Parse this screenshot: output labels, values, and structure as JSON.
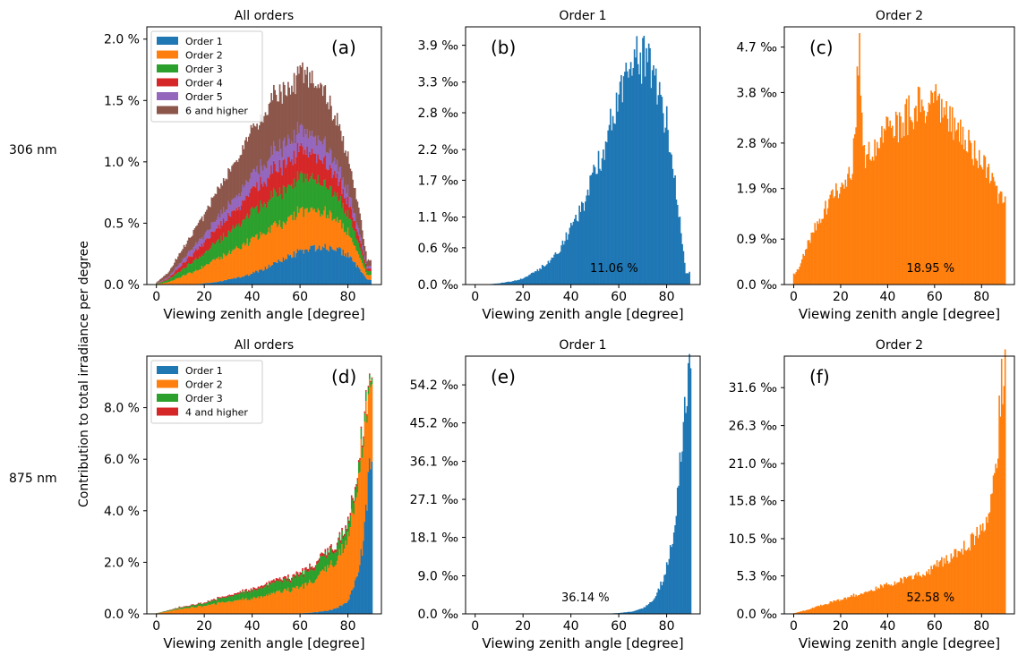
{
  "figure": {
    "ylabel": "Contribution to total irradiance per degree",
    "row_labels": [
      "306 nm",
      "875 nm"
    ]
  },
  "chart_data": [
    {
      "id": "a",
      "type": "bar",
      "stacked": true,
      "title": "All orders",
      "panel_label": "(a)",
      "xlabel": "Viewing zenith angle [degree]",
      "xlim": [
        -4,
        94
      ],
      "xticks": [
        "0",
        "20",
        "40",
        "60",
        "80"
      ],
      "ylim": [
        0,
        2.1
      ],
      "yticks": [
        0,
        0.5,
        1.0,
        1.5,
        2.0
      ],
      "ytick_labels": [
        "0.0 %",
        "0.5 %",
        "1.0 %",
        "1.5 %",
        "2.0 %"
      ],
      "legend_position": "top-left",
      "x": [
        5,
        10,
        15,
        20,
        25,
        30,
        35,
        40,
        45,
        50,
        55,
        60,
        65,
        70,
        75,
        80,
        85,
        88
      ],
      "series": [
        {
          "name": "Order 1",
          "color": "#1f77b4",
          "values": [
            0.0,
            0.0,
            0.0,
            0.01,
            0.02,
            0.04,
            0.06,
            0.09,
            0.13,
            0.18,
            0.23,
            0.27,
            0.3,
            0.31,
            0.3,
            0.24,
            0.12,
            0.04
          ]
        },
        {
          "name": "Order 2",
          "color": "#ff7f0e",
          "values": [
            0.02,
            0.06,
            0.1,
            0.14,
            0.18,
            0.22,
            0.25,
            0.27,
            0.29,
            0.3,
            0.31,
            0.32,
            0.31,
            0.28,
            0.24,
            0.18,
            0.1,
            0.04
          ]
        },
        {
          "name": "Order 3",
          "color": "#2ca02c",
          "values": [
            0.02,
            0.05,
            0.08,
            0.11,
            0.14,
            0.17,
            0.2,
            0.22,
            0.24,
            0.26,
            0.27,
            0.27,
            0.26,
            0.24,
            0.2,
            0.15,
            0.08,
            0.03
          ]
        },
        {
          "name": "Order 4",
          "color": "#d62728",
          "values": [
            0.01,
            0.04,
            0.06,
            0.09,
            0.11,
            0.13,
            0.15,
            0.17,
            0.19,
            0.2,
            0.21,
            0.21,
            0.2,
            0.18,
            0.15,
            0.11,
            0.06,
            0.02
          ]
        },
        {
          "name": "Order 5",
          "color": "#9467bd",
          "values": [
            0.01,
            0.03,
            0.05,
            0.06,
            0.08,
            0.1,
            0.11,
            0.13,
            0.14,
            0.15,
            0.16,
            0.16,
            0.15,
            0.14,
            0.12,
            0.09,
            0.05,
            0.02
          ]
        },
        {
          "name": "6 and higher",
          "color": "#8c564b",
          "values": [
            0.04,
            0.08,
            0.12,
            0.17,
            0.22,
            0.27,
            0.31,
            0.36,
            0.4,
            0.43,
            0.45,
            0.46,
            0.45,
            0.42,
            0.36,
            0.28,
            0.16,
            0.05
          ]
        }
      ]
    },
    {
      "id": "b",
      "type": "bar",
      "title": "Order 1",
      "panel_label": "(b)",
      "xlabel": "Viewing zenith angle [degree]",
      "xlim": [
        -4,
        94
      ],
      "xticks": [
        "0",
        "20",
        "40",
        "60",
        "80"
      ],
      "ylim": [
        0,
        4.2
      ],
      "yticks": [
        0,
        0.6,
        1.1,
        1.7,
        2.2,
        2.8,
        3.3,
        3.9
      ],
      "ytick_labels": [
        "0.0 ‰",
        "0.6 ‰",
        "1.1 ‰",
        "1.7 ‰",
        "2.2 ‰",
        "2.8 ‰",
        "3.3 ‰",
        "3.9 ‰"
      ],
      "annotation": "11.06 %",
      "x": [
        10,
        15,
        20,
        25,
        30,
        35,
        40,
        45,
        50,
        55,
        60,
        65,
        70,
        75,
        80,
        85,
        88
      ],
      "series": [
        {
          "name": "Order 1",
          "color": "#1f77b4",
          "values": [
            0.02,
            0.05,
            0.1,
            0.2,
            0.35,
            0.55,
            0.9,
            1.3,
            1.8,
            2.4,
            3.0,
            3.6,
            3.7,
            3.4,
            2.6,
            1.2,
            0.2
          ]
        }
      ]
    },
    {
      "id": "c",
      "type": "bar",
      "title": "Order 2",
      "panel_label": "(c)",
      "xlabel": "Viewing zenith angle [degree]",
      "xlim": [
        -4,
        94
      ],
      "xticks": [
        "0",
        "20",
        "40",
        "60",
        "80"
      ],
      "ylim": [
        0,
        5.1
      ],
      "yticks": [
        0,
        0.9,
        1.9,
        2.8,
        3.8,
        4.7
      ],
      "ytick_labels": [
        "0.0 ‰",
        "0.9 ‰",
        "1.9 ‰",
        "2.8 ‰",
        "3.8 ‰",
        "4.7 ‰"
      ],
      "annotation": "18.95 %",
      "x": [
        2,
        5,
        10,
        15,
        20,
        25,
        28,
        30,
        35,
        40,
        45,
        50,
        55,
        60,
        65,
        70,
        75,
        80,
        85,
        89
      ],
      "series": [
        {
          "name": "Order 2",
          "color": "#ff7f0e",
          "values": [
            0.3,
            0.7,
            1.2,
            1.6,
            2.0,
            2.3,
            4.7,
            2.5,
            2.8,
            3.0,
            3.2,
            3.4,
            3.6,
            3.6,
            3.4,
            3.1,
            2.8,
            2.4,
            2.0,
            1.6
          ]
        }
      ]
    },
    {
      "id": "d",
      "type": "bar",
      "stacked": true,
      "title": "All orders",
      "panel_label": "(d)",
      "xlabel": "Viewing zenith angle [degree]",
      "xlim": [
        -4,
        94
      ],
      "xticks": [
        "0",
        "20",
        "40",
        "60",
        "80"
      ],
      "ylim": [
        0,
        10.0
      ],
      "yticks": [
        0,
        2,
        4,
        6,
        8
      ],
      "ytick_labels": [
        "0.0 %",
        "2.0 %",
        "4.0 %",
        "6.0 %",
        "8.0 %"
      ],
      "legend_position": "top-left",
      "x": [
        5,
        10,
        20,
        30,
        40,
        50,
        60,
        65,
        70,
        75,
        80,
        84,
        86,
        88,
        89
      ],
      "series": [
        {
          "name": "Order 1",
          "color": "#1f77b4",
          "values": [
            0.0,
            0.0,
            0.0,
            0.0,
            0.0,
            0.0,
            0.02,
            0.05,
            0.1,
            0.2,
            0.5,
            1.5,
            2.5,
            4.5,
            5.5
          ]
        },
        {
          "name": "Order 2",
          "color": "#ff7f0e",
          "values": [
            0.1,
            0.2,
            0.3,
            0.5,
            0.6,
            0.8,
            1.0,
            1.2,
            1.5,
            1.9,
            2.5,
            3.5,
            4.0,
            3.8,
            3.0
          ]
        },
        {
          "name": "Order 3",
          "color": "#2ca02c",
          "values": [
            0.03,
            0.05,
            0.1,
            0.2,
            0.3,
            0.4,
            0.45,
            0.5,
            0.55,
            0.55,
            0.5,
            0.45,
            0.4,
            0.3,
            0.2
          ]
        },
        {
          "name": "4 and higher",
          "color": "#d62728",
          "values": [
            0.01,
            0.02,
            0.03,
            0.05,
            0.07,
            0.09,
            0.1,
            0.11,
            0.11,
            0.11,
            0.1,
            0.09,
            0.08,
            0.06,
            0.04
          ]
        }
      ]
    },
    {
      "id": "e",
      "type": "bar",
      "title": "Order 1",
      "panel_label": "(e)",
      "xlabel": "Viewing zenith angle [degree]",
      "xlim": [
        -4,
        94
      ],
      "xticks": [
        "0",
        "20",
        "40",
        "60",
        "80"
      ],
      "ylim": [
        0,
        61.0
      ],
      "yticks": [
        0,
        9.0,
        18.1,
        27.1,
        36.1,
        45.2,
        54.2
      ],
      "ytick_labels": [
        "0.0 ‰",
        "9.0 ‰",
        "18.1 ‰",
        "27.1 ‰",
        "36.1 ‰",
        "45.2 ‰",
        "54.2 ‰"
      ],
      "annotation": "36.14 %",
      "x": [
        60,
        65,
        70,
        73,
        76,
        79,
        82,
        84,
        86,
        88,
        89
      ],
      "series": [
        {
          "name": "Order 1",
          "color": "#1f77b4",
          "values": [
            0.2,
            0.5,
            1.2,
            2.5,
            5.0,
            9.0,
            16.0,
            25.0,
            38.0,
            53.0,
            58.0
          ]
        }
      ]
    },
    {
      "id": "f",
      "type": "bar",
      "title": "Order 2",
      "panel_label": "(f)",
      "xlabel": "Viewing zenith angle [degree]",
      "xlim": [
        -4,
        94
      ],
      "xticks": [
        "0",
        "20",
        "40",
        "60",
        "80"
      ],
      "ylim": [
        0,
        36.0
      ],
      "yticks": [
        0,
        5.3,
        10.5,
        15.8,
        21.0,
        26.3,
        31.6
      ],
      "ytick_labels": [
        "0.0 ‰",
        "5.3 ‰",
        "10.5 ‰",
        "15.8 ‰",
        "21.0 ‰",
        "26.3 ‰",
        "31.6 ‰"
      ],
      "annotation": "52.58 %",
      "x": [
        5,
        10,
        20,
        30,
        40,
        50,
        60,
        65,
        70,
        75,
        80,
        83,
        85,
        87,
        88,
        89
      ],
      "series": [
        {
          "name": "Order 2",
          "color": "#ff7f0e",
          "values": [
            0.5,
            1.0,
            2.0,
            3.0,
            4.0,
            5.0,
            6.5,
            7.5,
            8.5,
            10.0,
            12.0,
            14.0,
            18.0,
            24.0,
            31.0,
            33.0
          ]
        }
      ]
    }
  ]
}
